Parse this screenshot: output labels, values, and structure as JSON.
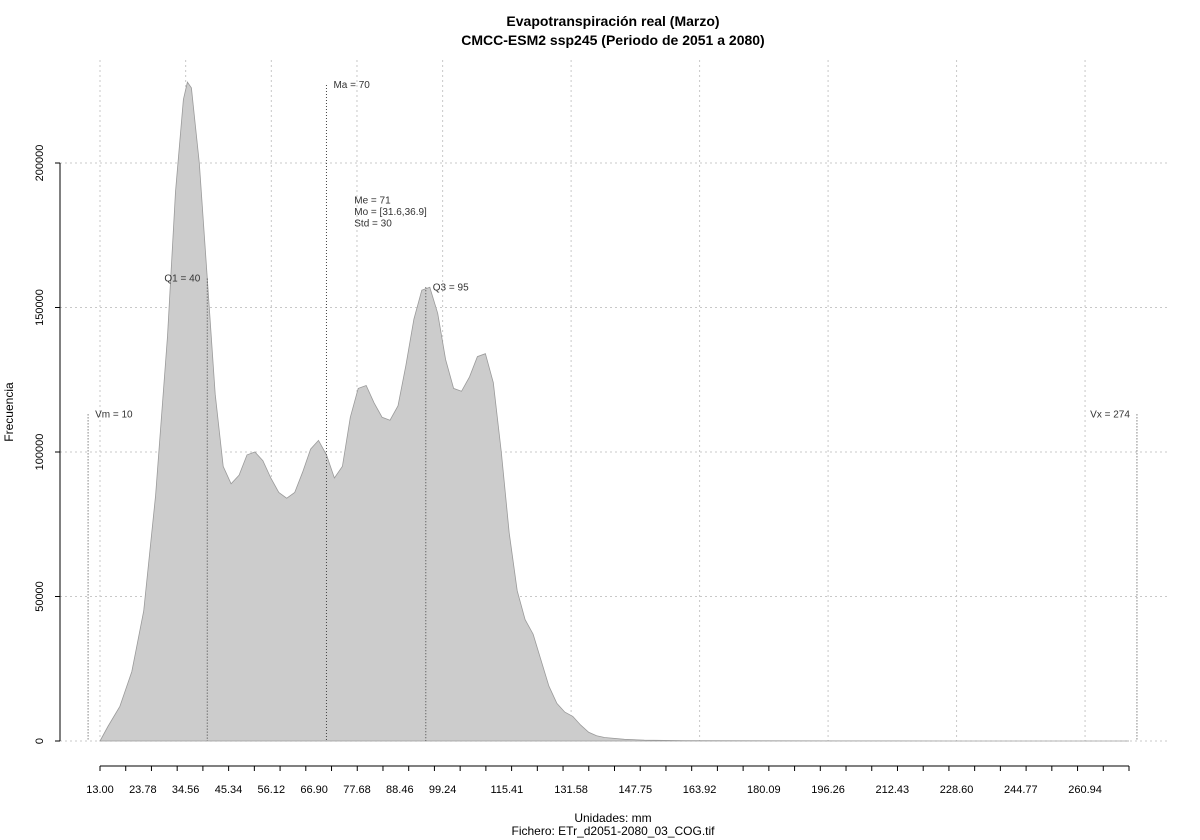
{
  "chart_data": {
    "type": "area",
    "title": "Evapotranspiración real (Marzo)",
    "subtitle": "CMCC-ESM2 ssp245 (Periodo de 2051 a 2080)",
    "xlabel": "Unidades: mm",
    "ylabel": "Frecuencia",
    "caption": "Fichero: ETr_d2051-2080_03_COG.tif",
    "xlim": [
      8,
      276
    ],
    "ylim": [
      0,
      230000
    ],
    "grid": true,
    "fill_color": "#cccccc",
    "x_ticks": [
      13.0,
      23.78,
      34.56,
      45.34,
      56.12,
      66.9,
      77.68,
      88.46,
      99.24,
      115.41,
      131.58,
      147.75,
      163.92,
      180.09,
      196.26,
      212.43,
      228.6,
      244.77,
      260.94
    ],
    "x_tick_labels": [
      "13.00",
      "23.78",
      "34.56",
      "45.34",
      "56.12",
      "66.90",
      "77.68",
      "88.46",
      "99.24",
      "115.41",
      "131.58",
      "147.75",
      "163.92",
      "180.09",
      "196.26",
      "212.43",
      "228.60",
      "244.77",
      "260.94"
    ],
    "y_ticks": [
      0,
      50000,
      100000,
      150000,
      200000
    ],
    "y_tick_labels": [
      "0",
      "50000",
      "100000",
      "150000",
      "200000"
    ],
    "vertical_grid_x": [
      13.0,
      34.56,
      56.12,
      77.68,
      99.24,
      131.58,
      163.92,
      196.26,
      228.6,
      260.94
    ],
    "density": {
      "x": [
        13,
        15,
        18,
        21,
        24,
        27,
        30,
        32,
        34,
        35,
        36,
        38,
        40,
        42,
        44,
        46,
        48,
        50,
        52,
        54,
        56,
        58,
        60,
        62,
        64,
        66,
        68,
        70,
        72,
        74,
        76,
        78,
        80,
        82,
        84,
        86,
        88,
        90,
        92,
        94,
        96,
        98,
        100,
        102,
        104,
        106,
        108,
        110,
        112,
        114,
        116,
        118,
        120,
        122,
        124,
        126,
        128,
        130,
        132,
        134,
        136,
        138,
        140,
        145,
        150,
        160,
        180,
        200,
        230,
        260,
        272
      ],
      "y": [
        0,
        5000,
        12000,
        24000,
        45000,
        85000,
        140000,
        190000,
        222000,
        228000,
        226000,
        200000,
        160000,
        120000,
        95000,
        89000,
        92000,
        99000,
        100000,
        97000,
        91000,
        86000,
        84000,
        86000,
        93000,
        101000,
        104000,
        99000,
        91000,
        95000,
        112000,
        122000,
        123000,
        117000,
        112000,
        111000,
        116000,
        130000,
        146000,
        156000,
        157000,
        148000,
        132000,
        122000,
        121000,
        126000,
        133000,
        134000,
        124000,
        100000,
        72000,
        52000,
        42000,
        37000,
        28000,
        19000,
        13000,
        10000,
        8500,
        5500,
        3000,
        1800,
        1200,
        600,
        300,
        150,
        60,
        30,
        10,
        5,
        0
      ]
    },
    "markers": [
      {
        "x": 10,
        "label": "Vm = 10",
        "top": 113000,
        "text_side": "right"
      },
      {
        "x": 40,
        "label": "Q1 = 40",
        "top": 160000,
        "text_side": "left"
      },
      {
        "x": 70,
        "label": "Ma = 70",
        "top": 227000,
        "text_side": "right"
      },
      {
        "x": 95,
        "label": "Q3 = 95",
        "top": 157000,
        "text_side": "right"
      },
      {
        "x": 274,
        "label": "Vx = 274",
        "top": 113000,
        "text_side": "left"
      }
    ],
    "stats_box": {
      "lines": [
        "Me = 71",
        "Mo = [31.6,36.9]",
        "Std = 30"
      ],
      "x": 77,
      "y": 186000
    }
  }
}
